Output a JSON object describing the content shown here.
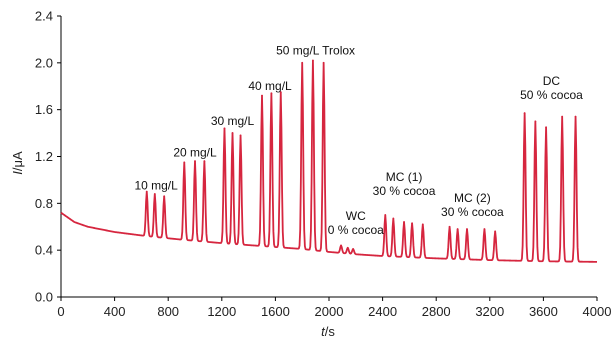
{
  "chart_data": {
    "type": "line",
    "xlabel": {
      "var": "t",
      "unit": "/s"
    },
    "ylabel": {
      "var": "I",
      "unit": "/μA"
    },
    "xlim": [
      0,
      4000
    ],
    "ylim": [
      0.0,
      2.4
    ],
    "x_ticks": [
      "0",
      "400",
      "800",
      "1200",
      "1600",
      "2000",
      "2400",
      "2800",
      "3200",
      "3600",
      "4000"
    ],
    "y_ticks": [
      "0.0",
      "0.4",
      "0.8",
      "1.2",
      "1.6",
      "2.0",
      "2.4"
    ],
    "grid": false,
    "legend": "none",
    "line_color": "#d6263f",
    "baseline": [
      {
        "x": 0,
        "y": 0.72
      },
      {
        "x": 100,
        "y": 0.64
      },
      {
        "x": 200,
        "y": 0.6
      },
      {
        "x": 400,
        "y": 0.555
      },
      {
        "x": 640,
        "y": 0.52
      },
      {
        "x": 900,
        "y": 0.49
      },
      {
        "x": 1200,
        "y": 0.46
      },
      {
        "x": 1500,
        "y": 0.435
      },
      {
        "x": 1800,
        "y": 0.41
      },
      {
        "x": 2000,
        "y": 0.385
      },
      {
        "x": 2200,
        "y": 0.365
      },
      {
        "x": 2400,
        "y": 0.35
      },
      {
        "x": 2800,
        "y": 0.33
      },
      {
        "x": 3200,
        "y": 0.315
      },
      {
        "x": 3600,
        "y": 0.305
      },
      {
        "x": 4000,
        "y": 0.3
      }
    ],
    "peaks": [
      {
        "x": 640,
        "y": 0.9
      },
      {
        "x": 700,
        "y": 0.88
      },
      {
        "x": 770,
        "y": 0.86
      },
      {
        "x": 920,
        "y": 1.15
      },
      {
        "x": 1000,
        "y": 1.16
      },
      {
        "x": 1070,
        "y": 1.16
      },
      {
        "x": 1220,
        "y": 1.44
      },
      {
        "x": 1280,
        "y": 1.4
      },
      {
        "x": 1340,
        "y": 1.38
      },
      {
        "x": 1500,
        "y": 1.72
      },
      {
        "x": 1570,
        "y": 1.74
      },
      {
        "x": 1640,
        "y": 1.75
      },
      {
        "x": 1800,
        "y": 2.0
      },
      {
        "x": 1880,
        "y": 2.02
      },
      {
        "x": 1960,
        "y": 2.0
      },
      {
        "x": 2090,
        "y": 0.44
      },
      {
        "x": 2140,
        "y": 0.42
      },
      {
        "x": 2180,
        "y": 0.41
      },
      {
        "x": 2420,
        "y": 0.7
      },
      {
        "x": 2480,
        "y": 0.67
      },
      {
        "x": 2560,
        "y": 0.64
      },
      {
        "x": 2620,
        "y": 0.63
      },
      {
        "x": 2700,
        "y": 0.62
      },
      {
        "x": 2900,
        "y": 0.6
      },
      {
        "x": 2960,
        "y": 0.58
      },
      {
        "x": 3030,
        "y": 0.58
      },
      {
        "x": 3160,
        "y": 0.58
      },
      {
        "x": 3240,
        "y": 0.56
      },
      {
        "x": 3460,
        "y": 1.57
      },
      {
        "x": 3540,
        "y": 1.5
      },
      {
        "x": 3620,
        "y": 1.45
      },
      {
        "x": 3740,
        "y": 1.54
      },
      {
        "x": 3840,
        "y": 1.54
      }
    ],
    "annotations": [
      {
        "lines": [
          "10 mg/L"
        ],
        "x": 710,
        "y": 0.92
      },
      {
        "lines": [
          "20 mg/L"
        ],
        "x": 1000,
        "y": 1.2
      },
      {
        "lines": [
          "30 mg/L"
        ],
        "x": 1280,
        "y": 1.47
      },
      {
        "lines": [
          "40 mg/L"
        ],
        "x": 1560,
        "y": 1.77
      },
      {
        "lines": [
          "50 mg/L Trolox"
        ],
        "x": 1900,
        "y": 2.07
      },
      {
        "lines": [
          "WC",
          "0 % cocoa"
        ],
        "x": 2200,
        "y": 0.54
      },
      {
        "lines": [
          "MC (1)",
          "30 % cocoa"
        ],
        "x": 2560,
        "y": 0.87
      },
      {
        "lines": [
          "MC (2)",
          "30 % cocoa"
        ],
        "x": 3070,
        "y": 0.69
      },
      {
        "lines": [
          "DC",
          "50 % cocoa"
        ],
        "x": 3660,
        "y": 1.69
      }
    ]
  }
}
